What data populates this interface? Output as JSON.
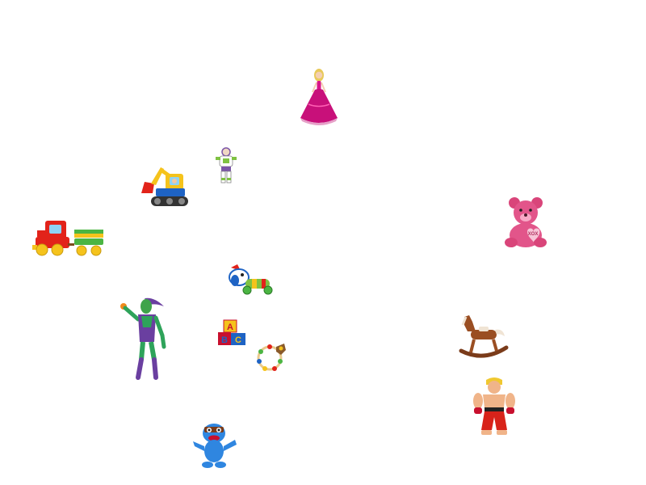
{
  "scene": {
    "background": "#ffffff",
    "objects": [
      "toy-doll-pink-gown",
      "toy-space-ranger",
      "toy-excavator",
      "toy-pink-teddy-bear",
      "toy-train",
      "toy-pull-along-dog",
      "toy-green-goblin-figure",
      "toy-alphabet-blocks",
      "toy-bead-rattle",
      "toy-rocking-horse",
      "toy-fighter-figure",
      "toy-blue-monster"
    ]
  },
  "teddy_heart_text": "XOX",
  "blocks_letters": [
    "A",
    "B",
    "C"
  ]
}
